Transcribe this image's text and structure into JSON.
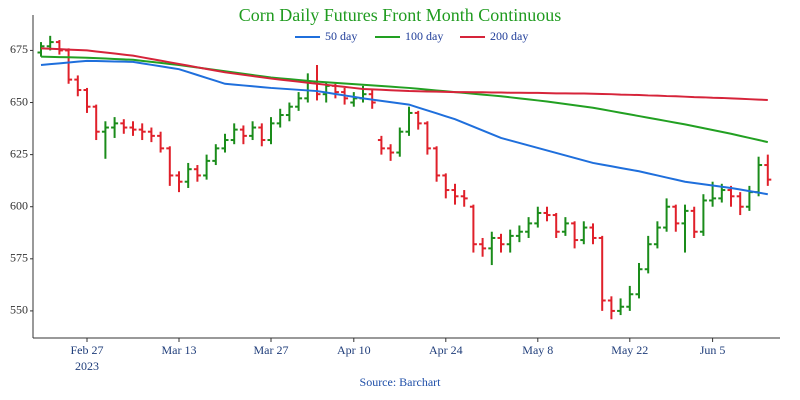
{
  "chart_data": {
    "type": "ohlc",
    "title": "Corn Daily Futures Front Month Continuous",
    "source": "Source: Barchart",
    "x": [
      "2023-02-17",
      "2023-02-21",
      "2023-02-22",
      "2023-02-23",
      "2023-02-24",
      "2023-02-27",
      "2023-02-28",
      "2023-03-01",
      "2023-03-02",
      "2023-03-03",
      "2023-03-06",
      "2023-03-07",
      "2023-03-08",
      "2023-03-09",
      "2023-03-10",
      "2023-03-13",
      "2023-03-14",
      "2023-03-15",
      "2023-03-16",
      "2023-03-17",
      "2023-03-20",
      "2023-03-21",
      "2023-03-22",
      "2023-03-23",
      "2023-03-24",
      "2023-03-27",
      "2023-03-28",
      "2023-03-29",
      "2023-03-30",
      "2023-03-31",
      "2023-04-03",
      "2023-04-04",
      "2023-04-05",
      "2023-04-06",
      "2023-04-10",
      "2023-04-11",
      "2023-04-12",
      "2023-04-13",
      "2023-04-14",
      "2023-04-17",
      "2023-04-18",
      "2023-04-19",
      "2023-04-20",
      "2023-04-21",
      "2023-04-24",
      "2023-04-25",
      "2023-04-26",
      "2023-04-27",
      "2023-04-28",
      "2023-05-01",
      "2023-05-02",
      "2023-05-03",
      "2023-05-04",
      "2023-05-05",
      "2023-05-08",
      "2023-05-09",
      "2023-05-10",
      "2023-05-11",
      "2023-05-12",
      "2023-05-15",
      "2023-05-16",
      "2023-05-17",
      "2023-05-18",
      "2023-05-19",
      "2023-05-22",
      "2023-05-23",
      "2023-05-24",
      "2023-05-25",
      "2023-05-26",
      "2023-05-30",
      "2023-05-31",
      "2023-06-01",
      "2023-06-02",
      "2023-06-05",
      "2023-06-06",
      "2023-06-07",
      "2023-06-08",
      "2023-06-09",
      "2023-06-12",
      "2023-06-13"
    ],
    "open": [
      674,
      677,
      679,
      675,
      661,
      656,
      648,
      636,
      638,
      640,
      638,
      637,
      636,
      634,
      628,
      615,
      612,
      618,
      615,
      622,
      628,
      632,
      637,
      634,
      638,
      632,
      640,
      644,
      648,
      652,
      660,
      654,
      658,
      655,
      650,
      652,
      654,
      632,
      628,
      626,
      636,
      645,
      640,
      628,
      615,
      608,
      605,
      600,
      582,
      580,
      585,
      582,
      586,
      588,
      592,
      597,
      596,
      588,
      592,
      584,
      590,
      585,
      555,
      550,
      552,
      558,
      570,
      582,
      590,
      600,
      592,
      598,
      588,
      603,
      604,
      608,
      605,
      600,
      607,
      620
    ],
    "high": [
      679,
      682,
      680,
      676,
      663,
      657,
      649,
      641,
      643,
      642,
      641,
      640,
      638,
      636,
      629,
      617,
      621,
      620,
      625,
      630,
      635,
      640,
      639,
      641,
      640,
      643,
      647,
      650,
      655,
      664,
      668,
      660,
      659,
      657,
      655,
      658,
      656,
      634,
      630,
      638,
      648,
      646,
      641,
      629,
      616,
      611,
      608,
      601,
      585,
      588,
      587,
      589,
      591,
      595,
      600,
      600,
      597,
      595,
      593,
      593,
      592,
      586,
      557,
      556,
      562,
      573,
      586,
      593,
      604,
      601,
      601,
      600,
      606,
      612,
      611,
      610,
      607,
      610,
      624,
      625
    ],
    "low": [
      672,
      675,
      673,
      659,
      653,
      645,
      632,
      623,
      633,
      635,
      634,
      632,
      631,
      626,
      610,
      607,
      609,
      612,
      613,
      620,
      626,
      630,
      630,
      632,
      629,
      630,
      638,
      641,
      646,
      650,
      651,
      650,
      652,
      649,
      648,
      650,
      647,
      625,
      622,
      624,
      634,
      637,
      625,
      612,
      604,
      601,
      600,
      578,
      576,
      572,
      578,
      578,
      583,
      585,
      590,
      593,
      585,
      586,
      580,
      582,
      582,
      550,
      546,
      548,
      550,
      556,
      568,
      580,
      588,
      588,
      578,
      585,
      586,
      600,
      602,
      600,
      596,
      598,
      605,
      610
    ],
    "close": [
      677,
      679,
      675,
      661,
      656,
      648,
      636,
      638,
      640,
      638,
      637,
      636,
      634,
      628,
      615,
      612,
      618,
      615,
      622,
      628,
      632,
      637,
      634,
      638,
      632,
      640,
      644,
      648,
      652,
      660,
      654,
      658,
      655,
      652,
      652,
      654,
      650,
      628,
      626,
      636,
      645,
      640,
      628,
      615,
      608,
      605,
      604,
      582,
      580,
      585,
      582,
      586,
      588,
      592,
      597,
      596,
      588,
      592,
      584,
      590,
      585,
      555,
      550,
      552,
      558,
      570,
      582,
      590,
      600,
      592,
      598,
      588,
      603,
      604,
      608,
      605,
      600,
      607,
      620,
      613
    ],
    "up_color": "#1a8c1a",
    "down_color": "#e0202a",
    "series": [
      {
        "name": "50 day",
        "color": "#1f6fdc",
        "values": [
          668,
          668.4,
          668.8,
          669.2,
          669.6,
          670,
          669.9,
          669.8,
          669.7,
          669.6,
          669.5,
          668.8,
          668.1,
          667.4,
          666.7,
          666,
          664.6,
          663.2,
          661.8,
          660.4,
          659,
          658.6,
          658.2,
          657.8,
          657.4,
          657,
          656.7,
          656.4,
          656.1,
          655.8,
          655.5,
          654.8,
          654.1,
          653.4,
          652.7,
          652,
          651.4,
          650.8,
          650.2,
          649.6,
          649,
          647.6,
          646.2,
          644.8,
          643.4,
          642,
          640.2,
          638.4,
          636.6,
          634.8,
          633,
          631.8,
          630.6,
          629.4,
          628.2,
          627,
          625.8,
          624.6,
          623.4,
          622.2,
          621,
          620.2,
          619.4,
          618.6,
          617.8,
          617,
          616,
          615,
          614,
          613,
          612,
          611.4,
          610.8,
          610.2,
          609.6,
          609,
          608.25,
          607.5,
          606.75,
          606
        ]
      },
      {
        "name": "100 day",
        "color": "#22a022",
        "values": [
          672,
          671.9,
          671.8,
          671.7,
          671.6,
          671.5,
          671.3,
          671.1,
          670.9,
          670.7,
          670.5,
          670,
          669.5,
          669,
          668.5,
          668,
          667.4,
          666.8,
          666.2,
          665.6,
          665,
          664.4,
          663.8,
          663.2,
          662.6,
          662,
          661.6,
          661.2,
          660.8,
          660.4,
          660,
          659.7,
          659.4,
          659.1,
          658.8,
          658.5,
          658.2,
          657.9,
          657.6,
          657.3,
          657,
          656.6,
          656.2,
          655.8,
          655.4,
          655,
          654.6,
          654.2,
          653.8,
          653.4,
          653,
          652.5,
          652,
          651.5,
          651,
          650.5,
          649.9,
          649.3,
          648.7,
          648.1,
          647.5,
          646.7,
          645.9,
          645.1,
          644.3,
          643.5,
          642.7,
          641.9,
          641.1,
          640.3,
          639.5,
          638.6,
          637.7,
          636.8,
          635.9,
          635,
          634,
          633,
          632,
          631
        ]
      },
      {
        "name": "200 day",
        "color": "#d6243a",
        "values": [
          676,
          675.8,
          675.6,
          675.4,
          675.2,
          675,
          674.5,
          674,
          673.5,
          673,
          672.5,
          671.7,
          670.9,
          670.1,
          669.3,
          668.5,
          667.7,
          666.9,
          666.1,
          665.3,
          664.5,
          663.9,
          663.3,
          662.7,
          662.1,
          661.5,
          661,
          660.5,
          660,
          659.5,
          659,
          658.5,
          658,
          657.5,
          657,
          656.5,
          656.3,
          656.1,
          655.9,
          655.7,
          655.5,
          655.4,
          655.3,
          655.2,
          655.1,
          655,
          655,
          654.9,
          654.9,
          654.8,
          654.8,
          654.7,
          654.7,
          654.6,
          654.6,
          654.5,
          654.4,
          654.4,
          654.3,
          654.3,
          654.2,
          654.1,
          654,
          653.8,
          653.7,
          653.6,
          653.4,
          653.3,
          653.1,
          653,
          652.8,
          652.6,
          652.5,
          652.3,
          652.2,
          652,
          651.8,
          651.6,
          651.4,
          651.2
        ]
      }
    ],
    "ylim": [
      537,
      692
    ],
    "yticks": [
      550,
      575,
      600,
      625,
      650,
      675
    ],
    "xticks": [
      {
        "value": "2023-02-27",
        "label": "Feb 27",
        "sublabel": "2023"
      },
      {
        "value": "2023-03-13",
        "label": "Mar 13"
      },
      {
        "value": "2023-03-27",
        "label": "Mar 27"
      },
      {
        "value": "2023-04-10",
        "label": "Apr 10"
      },
      {
        "value": "2023-04-24",
        "label": "Apr 24"
      },
      {
        "value": "2023-05-08",
        "label": "May 8"
      },
      {
        "value": "2023-05-22",
        "label": "May 22"
      },
      {
        "value": "2023-06-05",
        "label": "Jun 5"
      }
    ]
  }
}
